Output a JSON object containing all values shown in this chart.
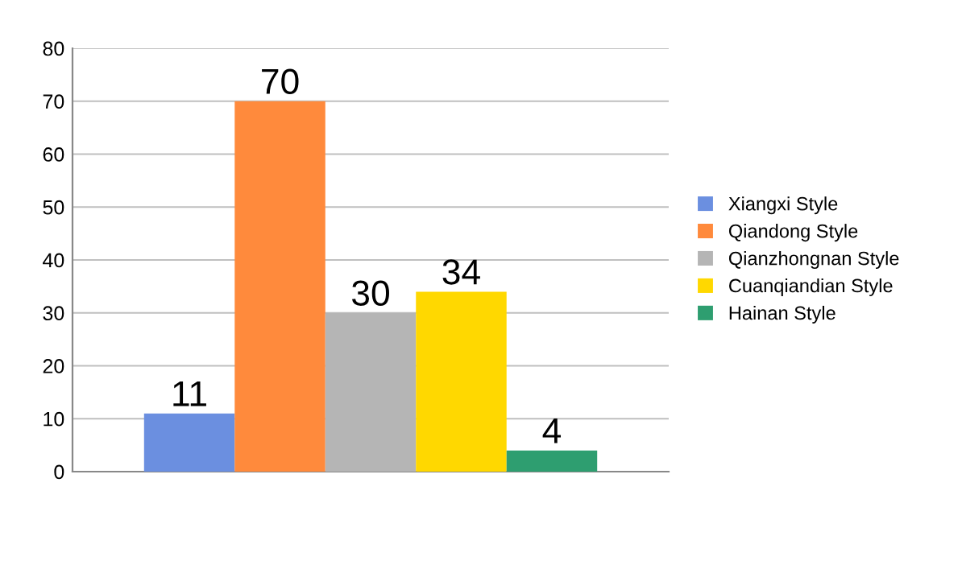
{
  "chart_data": {
    "type": "bar",
    "categories": [
      null
    ],
    "series": [
      {
        "name": "Xiangxi Style",
        "color": "#6b8fe0",
        "values": [
          11
        ]
      },
      {
        "name": "Qiandong Style",
        "color": "#ff8a3c",
        "values": [
          70
        ]
      },
      {
        "name": "Qianzhongnan Style",
        "color": "#b5b5b5",
        "values": [
          30
        ]
      },
      {
        "name": "Cuanqiandian Style",
        "color": "#ffd800",
        "values": [
          34
        ]
      },
      {
        "name": "Hainan Style",
        "color": "#2e9e70",
        "values": [
          4
        ]
      }
    ],
    "ylim": [
      0,
      80
    ],
    "yticks": [
      0,
      10,
      20,
      30,
      40,
      50,
      60,
      70,
      80
    ],
    "grid": "y",
    "legend": "right",
    "data_labels": true
  }
}
